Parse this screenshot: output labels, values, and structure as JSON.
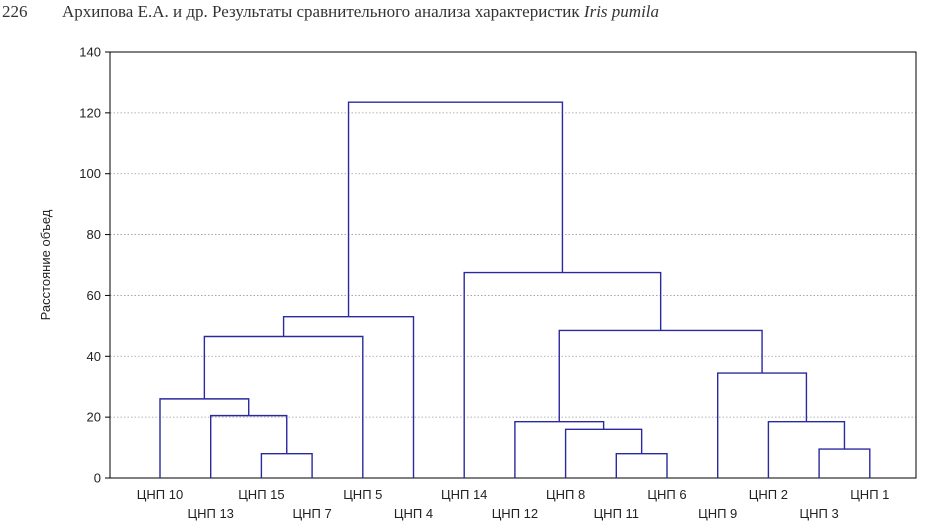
{
  "header": {
    "page_number": "226",
    "running_title": "Архипова Е.А. и др. Результаты сравнительного анализа характеристик ",
    "running_title_species": "Iris pumila"
  },
  "chart_data": {
    "type": "dendrogram",
    "ylabel": "Расстояние объед",
    "ylim": [
      0,
      140
    ],
    "yticks": [
      0,
      20,
      40,
      60,
      80,
      100,
      120,
      140
    ],
    "grid": true,
    "colors": {
      "tree": "#2a2aa0",
      "grid": "#9a9a9a",
      "frame": "#000000"
    },
    "leaves": [
      "ЦНП 10",
      "ЦНП 13",
      "ЦНП 15",
      "ЦНП 7",
      "ЦНП 5",
      "ЦНП 4",
      "ЦНП 14",
      "ЦНП 12",
      "ЦНП 8",
      "ЦНП 11",
      "ЦНП 6",
      "ЦНП 9",
      "ЦНП 2",
      "ЦНП 3",
      "ЦНП 1"
    ],
    "merges": [
      {
        "a": "ЦНП 15",
        "b": "ЦНП 7",
        "height": 8
      },
      {
        "a": "ЦНП 13",
        "b": "c1",
        "height": 20.5
      },
      {
        "a": "ЦНП 10",
        "b": "c2",
        "height": 26
      },
      {
        "a": "c3",
        "b": "ЦНП 5",
        "height": 46.5
      },
      {
        "a": "c4",
        "b": "ЦНП 4",
        "height": 53
      },
      {
        "a": "ЦНП 11",
        "b": "ЦНП 6",
        "height": 8
      },
      {
        "a": "ЦНП 8",
        "b": "c6",
        "height": 16
      },
      {
        "a": "ЦНП 12",
        "b": "c7",
        "height": 18.5
      },
      {
        "a": "ЦНП 3",
        "b": "ЦНП 1",
        "height": 9.5
      },
      {
        "a": "ЦНП 2",
        "b": "c9",
        "height": 18.5
      },
      {
        "a": "ЦНП 9",
        "b": "c10",
        "height": 34.5
      },
      {
        "a": "c8",
        "b": "c11",
        "height": 48.5
      },
      {
        "a": "ЦНП 14",
        "b": "c12",
        "height": 67.5
      },
      {
        "a": "c5",
        "b": "c13",
        "height": 123.5
      }
    ]
  }
}
